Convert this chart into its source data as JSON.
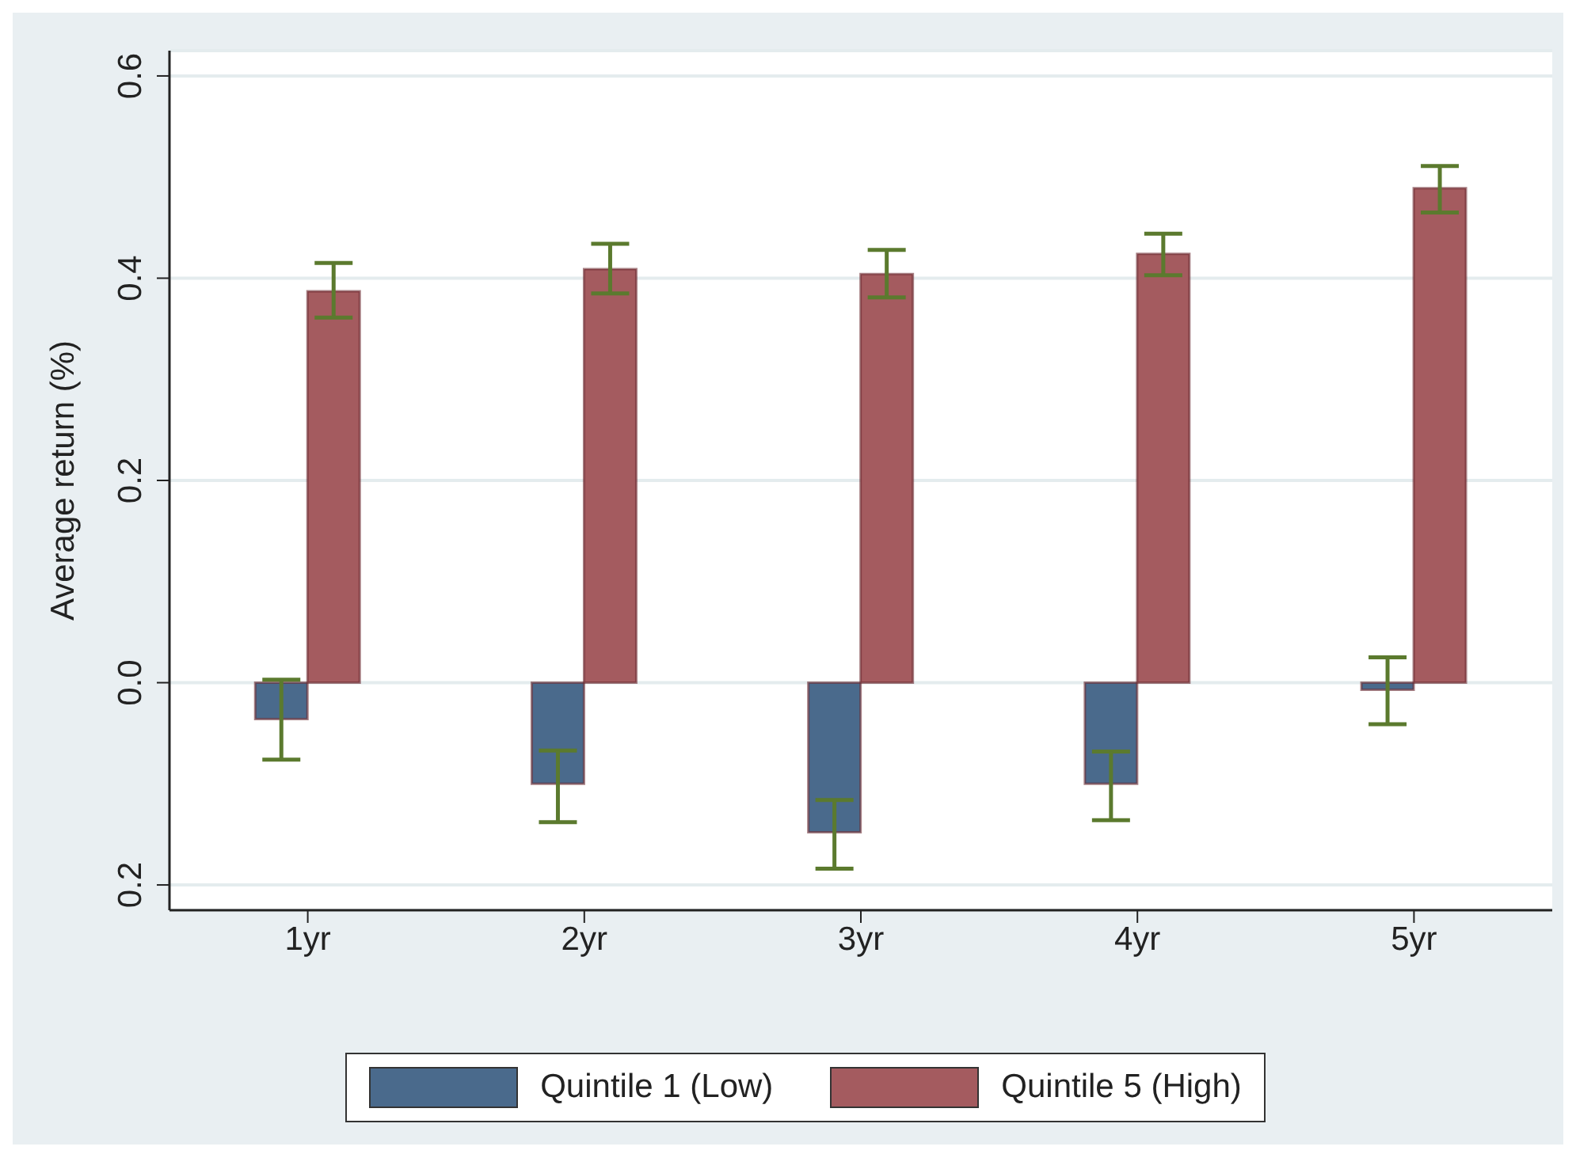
{
  "chart_data": {
    "type": "bar",
    "ylabel": "Average return (%)",
    "categories": [
      "1yr",
      "2yr",
      "3yr",
      "4yr",
      "5yr"
    ],
    "series": [
      {
        "name": "Quintile 1 (Low)",
        "color": "#4a6a8c",
        "values": [
          -0.036,
          -0.1,
          -0.148,
          -0.1,
          -0.007
        ],
        "errors": [
          [
            -0.076,
            0.003
          ],
          [
            -0.138,
            -0.067
          ],
          [
            -0.184,
            -0.116
          ],
          [
            -0.136,
            -0.068
          ],
          [
            -0.041,
            0.025
          ]
        ]
      },
      {
        "name": "Quintile 5 (High)",
        "color": "#a45b5f",
        "values": [
          0.387,
          0.409,
          0.404,
          0.424,
          0.489
        ],
        "errors": [
          [
            0.361,
            0.415
          ],
          [
            0.385,
            0.434
          ],
          [
            0.381,
            0.428
          ],
          [
            0.403,
            0.444
          ],
          [
            0.465,
            0.511
          ]
        ]
      }
    ],
    "ylim": [
      -0.225,
      0.625
    ],
    "yticks": [
      {
        "value": -0.2,
        "label": "0.2"
      },
      {
        "value": 0,
        "label": "0.0"
      },
      {
        "value": 0.2,
        "label": "0.2"
      },
      {
        "value": 0.4,
        "label": "0.4"
      },
      {
        "value": 0.6,
        "label": "0.6"
      }
    ],
    "grid": "y",
    "legend": "bottom"
  }
}
